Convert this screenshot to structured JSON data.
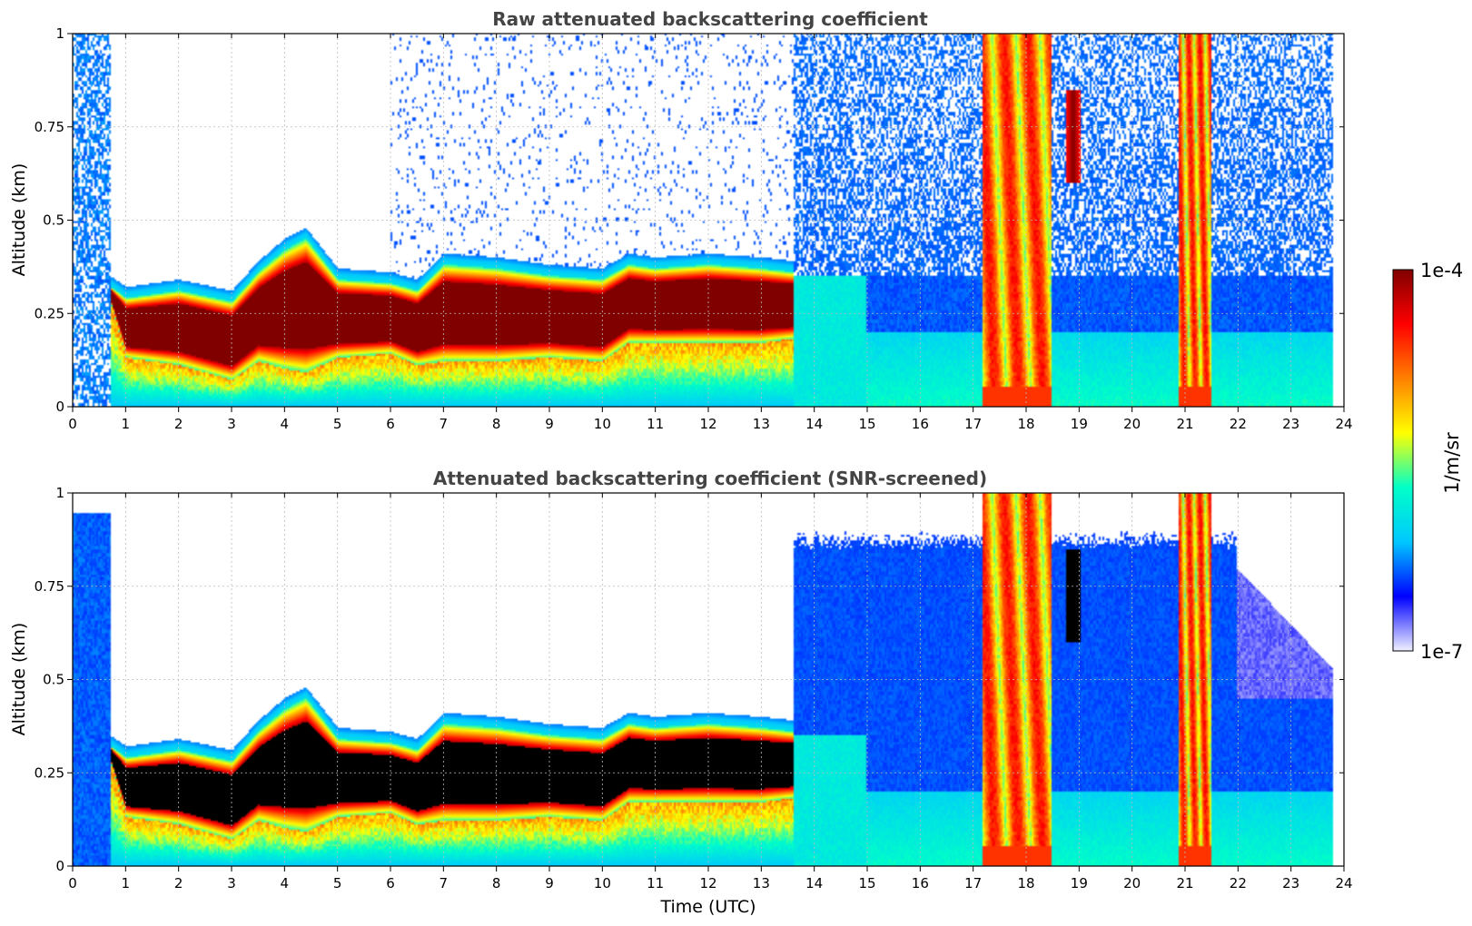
{
  "figure": {
    "colorbar": {
      "max_label": "1e-4",
      "min_label": "1e-7",
      "unit_label": "1/m/sr",
      "scale": "log",
      "range": [
        1e-07,
        0.0001
      ],
      "colormap": [
        "#f0f0ff",
        "#0000ff",
        "#00c8ff",
        "#00ffc8",
        "#ffff00",
        "#ff8000",
        "#ff0000",
        "#800000"
      ]
    },
    "xlabel": "Time (UTC)",
    "ylabel": "Altitude (km)"
  },
  "chart_data": [
    {
      "type": "heatmap",
      "title": "Raw attenuated backscattering coefficient",
      "xlabel": "",
      "ylabel": "Altitude (km)",
      "xlim": [
        0,
        24
      ],
      "ylim": [
        0,
        1
      ],
      "xticks": [
        "0",
        "1",
        "2",
        "3",
        "4",
        "5",
        "6",
        "7",
        "8",
        "9",
        "10",
        "11",
        "12",
        "13",
        "14",
        "15",
        "16",
        "17",
        "18",
        "19",
        "20",
        "21",
        "22",
        "23",
        "24"
      ],
      "yticks": [
        "0",
        "0.25",
        "0.5",
        "0.75",
        "1"
      ],
      "grid": true,
      "data_end_time": 23.8,
      "cloud_layer": {
        "time": [
          0.7,
          1,
          2,
          3,
          3.5,
          4,
          4.4,
          5,
          6,
          6.5,
          7,
          8,
          9,
          10,
          10.5,
          11,
          12,
          13,
          13.6
        ],
        "base_km": [
          0.28,
          0.13,
          0.11,
          0.07,
          0.12,
          0.1,
          0.09,
          0.13,
          0.14,
          0.11,
          0.12,
          0.12,
          0.13,
          0.12,
          0.17,
          0.17,
          0.17,
          0.17,
          0.18
        ],
        "top_km": [
          0.32,
          0.29,
          0.31,
          0.28,
          0.36,
          0.42,
          0.45,
          0.34,
          0.33,
          0.31,
          0.38,
          0.37,
          0.35,
          0.34,
          0.38,
          0.37,
          0.38,
          0.37,
          0.36
        ]
      },
      "precipitation_bands_utc": [
        [
          17.2,
          18.5
        ],
        [
          20.9,
          21.5
        ]
      ],
      "elevated_feature": {
        "time": 18.9,
        "alt_km": [
          0.6,
          0.85
        ]
      }
    },
    {
      "type": "heatmap",
      "title": "Attenuated backscattering coefficient (SNR-screened)",
      "xlabel": "Time (UTC)",
      "ylabel": "Altitude (km)",
      "xlim": [
        0,
        24
      ],
      "ylim": [
        0,
        1
      ],
      "xticks": [
        "0",
        "1",
        "2",
        "3",
        "4",
        "5",
        "6",
        "7",
        "8",
        "9",
        "10",
        "11",
        "12",
        "13",
        "14",
        "15",
        "16",
        "17",
        "18",
        "19",
        "20",
        "21",
        "22",
        "23",
        "24"
      ],
      "yticks": [
        "0",
        "0.25",
        "0.5",
        "0.75",
        "1"
      ],
      "grid": true,
      "data_end_time": 23.8,
      "saturated_color": "#000000",
      "precipitation_bands_utc": [
        [
          17.2,
          18.5
        ],
        [
          20.9,
          21.5
        ]
      ]
    }
  ]
}
